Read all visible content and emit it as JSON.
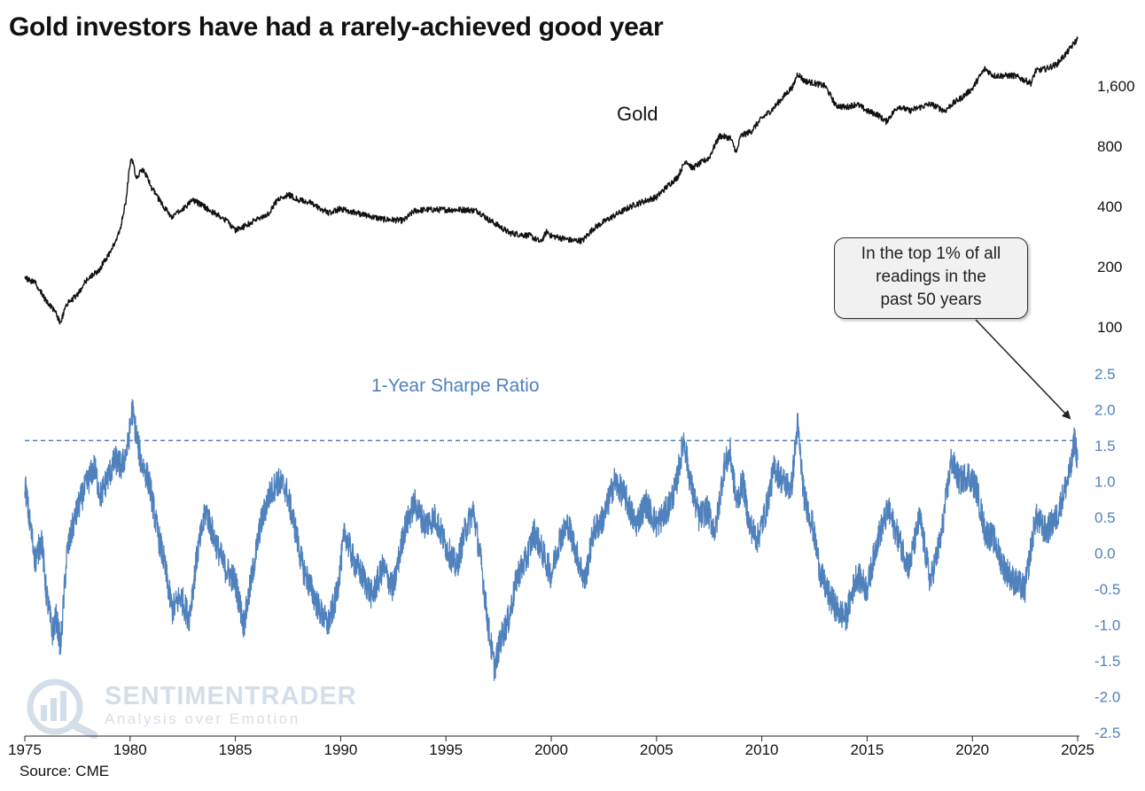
{
  "title": "Gold investors have had a rarely-achieved good year",
  "source": "Source: CME",
  "watermark": {
    "name": "SENTIMENTRADER",
    "tagline": "Analysis over Emotion"
  },
  "callout": {
    "lines": [
      "In the top 1% of all",
      "readings in the",
      "past 50 years"
    ]
  },
  "colors": {
    "gold": "#111111",
    "sharpe": "#4f81bd",
    "text": "#111111",
    "sharpe_axis": "#4f81bd"
  },
  "chart_data": [
    {
      "type": "line",
      "series_label": "Gold",
      "scale": "log",
      "ylim": [
        100,
        2900
      ],
      "y_ticks": [
        100,
        200,
        400,
        800,
        1600
      ],
      "y_tick_labels": [
        "100",
        "200",
        "400",
        "800",
        "1,600"
      ],
      "x": [
        1975.0,
        1975.5,
        1976.0,
        1976.4,
        1976.7,
        1977.0,
        1977.5,
        1978.0,
        1978.5,
        1979.0,
        1979.5,
        1979.8,
        1980.05,
        1980.3,
        1980.6,
        1981.0,
        1981.5,
        1982.0,
        1982.5,
        1983.0,
        1983.5,
        1984.0,
        1984.5,
        1985.0,
        1985.5,
        1986.0,
        1986.5,
        1987.0,
        1987.5,
        1988.0,
        1988.5,
        1989.0,
        1989.5,
        1990.0,
        1991.0,
        1992.0,
        1993.0,
        1993.5,
        1994.0,
        1995.0,
        1996.0,
        1996.5,
        1997.0,
        1997.5,
        1998.0,
        1999.0,
        1999.5,
        1999.8,
        2000.0,
        2001.0,
        2001.5,
        2002.0,
        2003.0,
        2004.0,
        2005.0,
        2006.0,
        2006.4,
        2006.7,
        2007.0,
        2007.5,
        2008.0,
        2008.5,
        2008.8,
        2009.0,
        2009.5,
        2010.0,
        2010.5,
        2011.0,
        2011.5,
        2011.7,
        2012.0,
        2012.5,
        2013.0,
        2013.5,
        2014.0,
        2014.5,
        2015.0,
        2015.5,
        2015.9,
        2016.5,
        2017.0,
        2018.0,
        2018.7,
        2019.0,
        2019.5,
        2020.0,
        2020.6,
        2021.0,
        2022.0,
        2022.8,
        2023.0,
        2023.5,
        2024.0,
        2024.5,
        2025.0
      ],
      "y": [
        175,
        165,
        135,
        120,
        105,
        130,
        145,
        175,
        190,
        230,
        295,
        420,
        700,
        560,
        620,
        500,
        410,
        350,
        390,
        430,
        400,
        370,
        345,
        305,
        320,
        345,
        360,
        430,
        460,
        430,
        420,
        390,
        370,
        390,
        365,
        345,
        340,
        380,
        385,
        385,
        385,
        380,
        345,
        320,
        295,
        285,
        265,
        300,
        285,
        270,
        270,
        310,
        360,
        410,
        445,
        560,
        680,
        620,
        650,
        700,
        900,
        880,
        740,
        900,
        950,
        1100,
        1220,
        1400,
        1600,
        1850,
        1700,
        1650,
        1600,
        1280,
        1250,
        1300,
        1200,
        1150,
        1060,
        1270,
        1200,
        1300,
        1200,
        1290,
        1400,
        1550,
        1950,
        1800,
        1800,
        1650,
        1900,
        1950,
        2050,
        2350,
        2750
      ]
    },
    {
      "type": "line",
      "series_label": "1-Year Sharpe Ratio",
      "ylim": [
        -2.5,
        2.5
      ],
      "y_ticks": [
        -2.5,
        -2.0,
        -1.5,
        -1.0,
        -0.5,
        0.0,
        0.5,
        1.0,
        1.5,
        2.0,
        2.5
      ],
      "reference_line": 1.57,
      "x": [
        1975.0,
        1975.2,
        1975.5,
        1975.8,
        1976.0,
        1976.3,
        1976.5,
        1976.7,
        1977.0,
        1977.3,
        1977.6,
        1978.0,
        1978.3,
        1978.6,
        1979.0,
        1979.3,
        1979.6,
        1979.9,
        1980.1,
        1980.5,
        1980.9,
        1981.3,
        1981.6,
        1982.0,
        1982.4,
        1982.8,
        1983.2,
        1983.6,
        1984.0,
        1984.5,
        1985.0,
        1985.4,
        1985.8,
        1986.2,
        1986.6,
        1987.0,
        1987.4,
        1987.8,
        1988.2,
        1988.6,
        1989.0,
        1989.4,
        1989.8,
        1990.2,
        1990.6,
        1991.0,
        1991.5,
        1992.0,
        1992.5,
        1993.0,
        1993.5,
        1994.0,
        1994.5,
        1995.0,
        1995.5,
        1995.9,
        1996.3,
        1996.7,
        1997.0,
        1997.3,
        1997.6,
        1998.0,
        1998.4,
        1998.8,
        1999.2,
        1999.6,
        2000.0,
        2000.4,
        2000.8,
        2001.2,
        2001.6,
        2002.0,
        2002.5,
        2003.0,
        2003.5,
        2004.0,
        2004.5,
        2005.0,
        2005.5,
        2005.9,
        2006.3,
        2006.6,
        2007.0,
        2007.4,
        2007.8,
        2008.2,
        2008.5,
        2008.8,
        2009.1,
        2009.4,
        2009.8,
        2010.2,
        2010.6,
        2011.0,
        2011.4,
        2011.7,
        2012.0,
        2012.4,
        2012.8,
        2013.2,
        2013.6,
        2014.0,
        2014.5,
        2015.0,
        2015.5,
        2016.0,
        2016.5,
        2017.0,
        2017.5,
        2018.0,
        2018.5,
        2019.0,
        2019.4,
        2019.8,
        2020.2,
        2020.6,
        2021.0,
        2021.5,
        2022.0,
        2022.5,
        2023.0,
        2023.5,
        2024.0,
        2024.4,
        2024.7,
        2024.85,
        2025.0
      ],
      "y": [
        1.0,
        0.5,
        -0.1,
        0.2,
        -0.5,
        -1.1,
        -0.9,
        -1.3,
        0.0,
        0.4,
        0.7,
        1.0,
        1.2,
        0.8,
        1.1,
        1.3,
        1.2,
        1.5,
        2.0,
        1.3,
        1.0,
        0.3,
        -0.1,
        -0.8,
        -0.6,
        -0.9,
        0.0,
        0.6,
        0.2,
        -0.2,
        -0.4,
        -1.0,
        -0.3,
        0.4,
        0.8,
        1.0,
        0.9,
        0.4,
        -0.2,
        -0.5,
        -0.8,
        -1.0,
        -0.6,
        0.3,
        -0.1,
        -0.3,
        -0.6,
        -0.2,
        -0.5,
        0.3,
        0.7,
        0.4,
        0.5,
        0.1,
        -0.2,
        0.3,
        0.6,
        -0.2,
        -1.0,
        -1.6,
        -1.2,
        -0.9,
        -0.3,
        -0.1,
        0.3,
        0.0,
        -0.3,
        0.2,
        0.4,
        0.0,
        -0.4,
        0.3,
        0.5,
        1.0,
        0.8,
        0.4,
        0.7,
        0.4,
        0.6,
        0.9,
        1.6,
        1.0,
        0.5,
        0.6,
        0.3,
        1.2,
        1.4,
        0.7,
        1.0,
        0.4,
        0.2,
        0.6,
        1.2,
        1.0,
        0.9,
        1.8,
        0.8,
        0.4,
        -0.3,
        -0.6,
        -0.8,
        -0.9,
        -0.3,
        -0.5,
        0.2,
        0.6,
        0.2,
        -0.2,
        0.5,
        -0.4,
        0.2,
        1.3,
        1.0,
        1.1,
        0.9,
        0.3,
        0.2,
        -0.2,
        -0.4,
        -0.5,
        0.5,
        0.3,
        0.5,
        0.9,
        1.2,
        1.6,
        1.3
      ],
      "x_ticks": [
        1975,
        1980,
        1985,
        1990,
        1995,
        2000,
        2005,
        2010,
        2015,
        2020,
        2025
      ]
    }
  ]
}
